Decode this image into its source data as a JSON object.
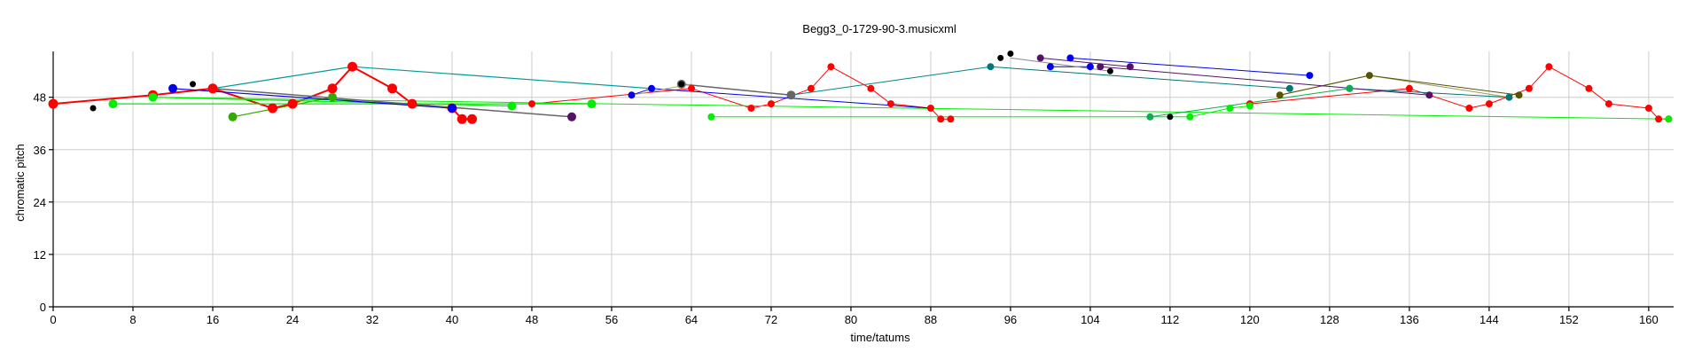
{
  "chart_data": {
    "type": "line",
    "title": "Begg3_0-1729-90-3.musicxml",
    "xlabel": "time/tatums",
    "ylabel": "chromatic pitch",
    "xlim": [
      0,
      162.5
    ],
    "ylim": [
      0,
      58.5
    ],
    "xticks": [
      0,
      8,
      16,
      24,
      32,
      40,
      48,
      56,
      64,
      72,
      80,
      88,
      96,
      104,
      112,
      120,
      128,
      136,
      144,
      152,
      160
    ],
    "yticks": [
      0,
      12,
      24,
      36,
      48
    ],
    "grid": true,
    "series": [
      {
        "color": "#ff0000",
        "line_width": 2,
        "marker_size": 5.5,
        "points": [
          [
            0,
            46.5
          ],
          [
            10,
            48.5
          ],
          [
            16,
            50
          ],
          [
            22,
            45.5
          ],
          [
            24,
            46.5
          ],
          [
            28,
            50
          ],
          [
            30,
            55
          ],
          [
            34,
            50
          ],
          [
            36,
            46.5
          ],
          [
            40,
            45.5
          ],
          [
            41,
            43
          ],
          [
            42,
            43
          ]
        ]
      },
      {
        "color": "#ff0000",
        "line_width": 1,
        "marker_size": 4,
        "points": [
          [
            48,
            46.5
          ],
          [
            64,
            50
          ],
          [
            70,
            45.5
          ],
          [
            72,
            46.5
          ],
          [
            76,
            50
          ],
          [
            78,
            55
          ],
          [
            82,
            50
          ],
          [
            84,
            46.5
          ],
          [
            88,
            45.5
          ],
          [
            89,
            43
          ],
          [
            90,
            43
          ]
        ]
      },
      {
        "color": "#ff0000",
        "line_width": 1,
        "marker_size": 4,
        "points": [
          [
            120,
            46.5
          ],
          [
            136,
            50
          ],
          [
            142,
            45.5
          ],
          [
            144,
            46.5
          ],
          [
            148,
            50
          ],
          [
            150,
            55
          ],
          [
            154,
            50
          ],
          [
            156,
            46.5
          ],
          [
            160,
            45.5
          ],
          [
            161,
            43
          ],
          [
            162,
            43
          ]
        ]
      },
      {
        "color": "#00ee00",
        "line_width": 1.2,
        "marker_size": 5,
        "points": [
          [
            6,
            46.5
          ],
          [
            54,
            46.5
          ]
        ]
      },
      {
        "color": "#00ee00",
        "line_width": 1.2,
        "marker_size": 5,
        "points": [
          [
            10,
            48
          ],
          [
            46,
            46
          ]
        ]
      },
      {
        "color": "#00ee00",
        "line_width": 1,
        "marker_size": 4,
        "points": [
          [
            66,
            43.5
          ],
          [
            114,
            43.5
          ],
          [
            118,
            45.5
          ],
          [
            120,
            46
          ]
        ]
      },
      {
        "color": "#00ee00",
        "line_width": 1,
        "marker_size": 4,
        "points": [
          [
            10,
            48
          ],
          [
            162,
            43
          ]
        ]
      },
      {
        "color": "#33aa00",
        "line_width": 1.2,
        "marker_size": 5,
        "points": [
          [
            18,
            43.5
          ],
          [
            28,
            48
          ]
        ]
      },
      {
        "color": "#009999",
        "line_width": 1.2,
        "marker_size": 0,
        "points": [
          [
            16,
            50
          ],
          [
            30,
            55
          ],
          [
            60,
            50
          ]
        ]
      },
      {
        "color": "#007777",
        "line_width": 1,
        "marker_size": 4,
        "points": [
          [
            94,
            55
          ],
          [
            124,
            50
          ]
        ]
      },
      {
        "color": "#008888",
        "line_width": 1,
        "marker_size": 0,
        "points": [
          [
            74,
            48.5
          ],
          [
            94,
            55
          ]
        ]
      },
      {
        "color": "#007777",
        "line_width": 1,
        "marker_size": 4,
        "points": [
          [
            130,
            50
          ],
          [
            146,
            48
          ]
        ]
      },
      {
        "color": "#0000ee",
        "line_width": 1.2,
        "marker_size": 5,
        "points": [
          [
            12,
            50
          ],
          [
            40,
            45.5
          ]
        ]
      },
      {
        "color": "#0000ee",
        "line_width": 1,
        "marker_size": 4,
        "points": [
          [
            60,
            50
          ],
          [
            58,
            48.5
          ]
        ]
      },
      {
        "color": "#0000ee",
        "line_width": 1,
        "marker_size": 0,
        "points": [
          [
            60,
            50
          ],
          [
            88,
            45.5
          ]
        ]
      },
      {
        "color": "#0000ee",
        "line_width": 1,
        "marker_size": 4,
        "points": [
          [
            102,
            57
          ],
          [
            126,
            53
          ]
        ]
      },
      {
        "color": "#0000ee",
        "line_width": 1,
        "marker_size": 4,
        "points": [
          [
            100,
            55
          ],
          [
            104,
            55
          ]
        ]
      },
      {
        "color": "#666666",
        "line_width": 1.5,
        "marker_size": 0,
        "points": [
          [
            16,
            50
          ],
          [
            52,
            43.5
          ]
        ]
      },
      {
        "color": "#666666",
        "line_width": 1.5,
        "marker_size": 5,
        "points": [
          [
            63,
            51
          ],
          [
            74,
            48.5
          ]
        ]
      },
      {
        "color": "#888888",
        "line_width": 1,
        "marker_size": 0,
        "points": [
          [
            96,
            57
          ],
          [
            106,
            54
          ]
        ]
      },
      {
        "color": "#aaaa66",
        "line_width": 1,
        "marker_size": 0,
        "points": [
          [
            64,
            51
          ],
          [
            58,
            48.5
          ]
        ]
      },
      {
        "color": "#999966",
        "line_width": 1,
        "marker_size": 0,
        "points": [
          [
            123,
            48.5
          ],
          [
            132,
            53
          ],
          [
            146,
            48
          ]
        ]
      },
      {
        "color": "#555500",
        "line_width": 1,
        "marker_size": 4,
        "points": [
          [
            123,
            48.5
          ],
          [
            132,
            53
          ],
          [
            147,
            48.5
          ]
        ]
      },
      {
        "color": "#551166",
        "line_width": 1,
        "marker_size": 4,
        "points": [
          [
            99,
            57
          ],
          [
            108,
            55
          ]
        ]
      },
      {
        "color": "#551166",
        "line_width": 1,
        "marker_size": 4,
        "points": [
          [
            138,
            48.5
          ],
          [
            105,
            55
          ]
        ]
      },
      {
        "color": "#551166",
        "line_width": 1,
        "marker_size": 5,
        "points": [
          [
            52,
            43.5
          ]
        ]
      },
      {
        "color": "#11aa55",
        "line_width": 1,
        "marker_size": 4,
        "points": [
          [
            110,
            43.5
          ],
          [
            130,
            50
          ]
        ]
      },
      {
        "color": "#000000",
        "line_width": 0,
        "marker_size": 3.5,
        "points": [
          [
            4,
            45.5
          ],
          [
            14,
            51
          ],
          [
            63,
            51
          ],
          [
            95,
            57
          ],
          [
            96,
            58
          ],
          [
            106,
            54
          ],
          [
            112,
            43.5
          ]
        ]
      }
    ]
  }
}
